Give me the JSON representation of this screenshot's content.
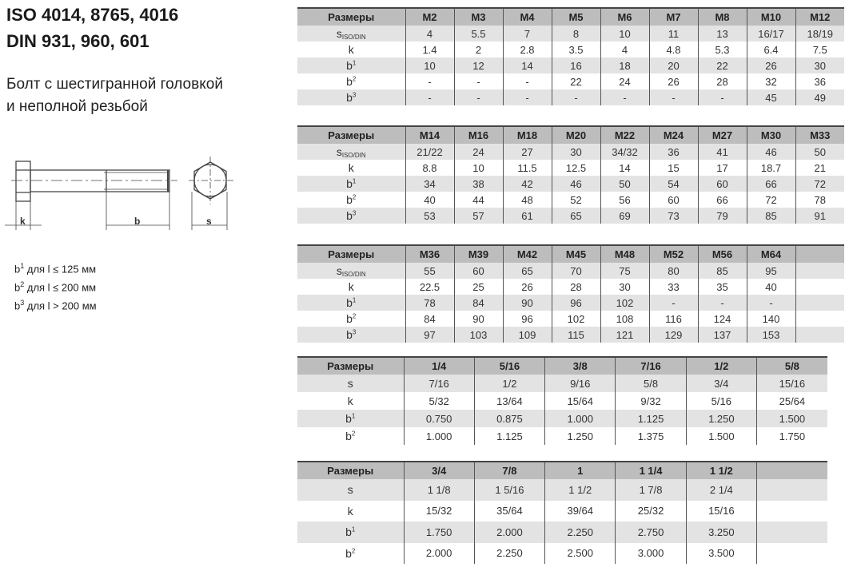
{
  "title": {
    "line1": "ISO 4014, 8765, 4016",
    "line2": "DIN 931, 960, 601"
  },
  "description": {
    "line1": "Болт с шестигранной головкой",
    "line2": "и неполной резьбой"
  },
  "drawing": {
    "label_k": "k",
    "label_b": "b",
    "label_s": "s"
  },
  "notes": [
    {
      "base": "b",
      "sup": "1",
      "text": " для l ≤ 125 мм"
    },
    {
      "base": "b",
      "sup": "2",
      "text": " для l ≤ 200 мм"
    },
    {
      "base": "b",
      "sup": "3",
      "text": " для l > 200 мм"
    }
  ],
  "colors": {
    "header_bg": "#bdbdbd",
    "alt_row_bg": "#e3e3e3"
  },
  "tables": [
    {
      "header": "Размеры",
      "columns": [
        "M2",
        "M3",
        "M4",
        "M5",
        "M6",
        "M7",
        "M8",
        "M10",
        "M12"
      ],
      "rows": [
        {
          "base": "s",
          "sub": "ISO/DIN",
          "values": [
            "4",
            "5.5",
            "7",
            "8",
            "10",
            "11",
            "13",
            "16/17",
            "18/19"
          ]
        },
        {
          "base": "k",
          "values": [
            "1.4",
            "2",
            "2.8",
            "3.5",
            "4",
            "4.8",
            "5.3",
            "6.4",
            "7.5"
          ]
        },
        {
          "base": "b",
          "sup": "1",
          "values": [
            "10",
            "12",
            "14",
            "16",
            "18",
            "20",
            "22",
            "26",
            "30"
          ]
        },
        {
          "base": "b",
          "sup": "2",
          "values": [
            "-",
            "-",
            "-",
            "22",
            "24",
            "26",
            "28",
            "32",
            "36"
          ]
        },
        {
          "base": "b",
          "sup": "3",
          "values": [
            "-",
            "-",
            "-",
            "-",
            "-",
            "-",
            "-",
            "45",
            "49"
          ]
        }
      ]
    },
    {
      "header": "Размеры",
      "columns": [
        "M14",
        "M16",
        "M18",
        "M20",
        "M22",
        "M24",
        "M27",
        "M30",
        "M33"
      ],
      "rows": [
        {
          "base": "s",
          "sub": "ISO/DIN",
          "values": [
            "21/22",
            "24",
            "27",
            "30",
            "34/32",
            "36",
            "41",
            "46",
            "50"
          ]
        },
        {
          "base": "k",
          "values": [
            "8.8",
            "10",
            "11.5",
            "12.5",
            "14",
            "15",
            "17",
            "18.7",
            "21"
          ]
        },
        {
          "base": "b",
          "sup": "1",
          "values": [
            "34",
            "38",
            "42",
            "46",
            "50",
            "54",
            "60",
            "66",
            "72"
          ]
        },
        {
          "base": "b",
          "sup": "2",
          "values": [
            "40",
            "44",
            "48",
            "52",
            "56",
            "60",
            "66",
            "72",
            "78"
          ]
        },
        {
          "base": "b",
          "sup": "3",
          "values": [
            "53",
            "57",
            "61",
            "65",
            "69",
            "73",
            "79",
            "85",
            "91"
          ]
        }
      ]
    },
    {
      "header": "Размеры",
      "columns": [
        "M36",
        "M39",
        "M42",
        "M45",
        "M48",
        "M52",
        "M56",
        "M64",
        ""
      ],
      "rows": [
        {
          "base": "s",
          "sub": "ISO/DIN",
          "values": [
            "55",
            "60",
            "65",
            "70",
            "75",
            "80",
            "85",
            "95",
            ""
          ]
        },
        {
          "base": "k",
          "values": [
            "22.5",
            "25",
            "26",
            "28",
            "30",
            "33",
            "35",
            "40",
            ""
          ]
        },
        {
          "base": "b",
          "sup": "1",
          "values": [
            "78",
            "84",
            "90",
            "96",
            "102",
            "-",
            "-",
            "-",
            ""
          ]
        },
        {
          "base": "b",
          "sup": "2",
          "values": [
            "84",
            "90",
            "96",
            "102",
            "108",
            "116",
            "124",
            "140",
            ""
          ]
        },
        {
          "base": "b",
          "sup": "3",
          "values": [
            "97",
            "103",
            "109",
            "115",
            "121",
            "129",
            "137",
            "153",
            ""
          ]
        }
      ]
    },
    {
      "header": "Размеры",
      "columns": [
        "1/4",
        "5/16",
        "3/8",
        "7/16",
        "1/2",
        "5/8"
      ],
      "rows": [
        {
          "base": "s",
          "values": [
            "7/16",
            "1/2",
            "9/16",
            "5/8",
            "3/4",
            "15/16"
          ]
        },
        {
          "base": "k",
          "values": [
            "5/32",
            "13/64",
            "15/64",
            "9/32",
            "5/16",
            "25/64"
          ]
        },
        {
          "base": "b",
          "sup": "1",
          "values": [
            "0.750",
            "0.875",
            "1.000",
            "1.125",
            "1.250",
            "1.500"
          ]
        },
        {
          "base": "b",
          "sup": "2",
          "values": [
            "1.000",
            "1.125",
            "1.250",
            "1.375",
            "1.500",
            "1.750"
          ]
        }
      ]
    },
    {
      "header": "Размеры",
      "columns": [
        "3/4",
        "7/8",
        "1",
        "1 1/4",
        "1 1/2",
        ""
      ],
      "rows": [
        {
          "base": "s",
          "values": [
            "1 1/8",
            "1 5/16",
            "1 1/2",
            "1 7/8",
            "2 1/4",
            ""
          ]
        },
        {
          "base": "k",
          "values": [
            "15/32",
            "35/64",
            "39/64",
            "25/32",
            "15/16",
            ""
          ]
        },
        {
          "base": "b",
          "sup": "1",
          "values": [
            "1.750",
            "2.000",
            "2.250",
            "2.750",
            "3.250",
            ""
          ]
        },
        {
          "base": "b",
          "sup": "2",
          "values": [
            "2.000",
            "2.250",
            "2.500",
            "3.000",
            "3.500",
            ""
          ]
        }
      ]
    }
  ]
}
